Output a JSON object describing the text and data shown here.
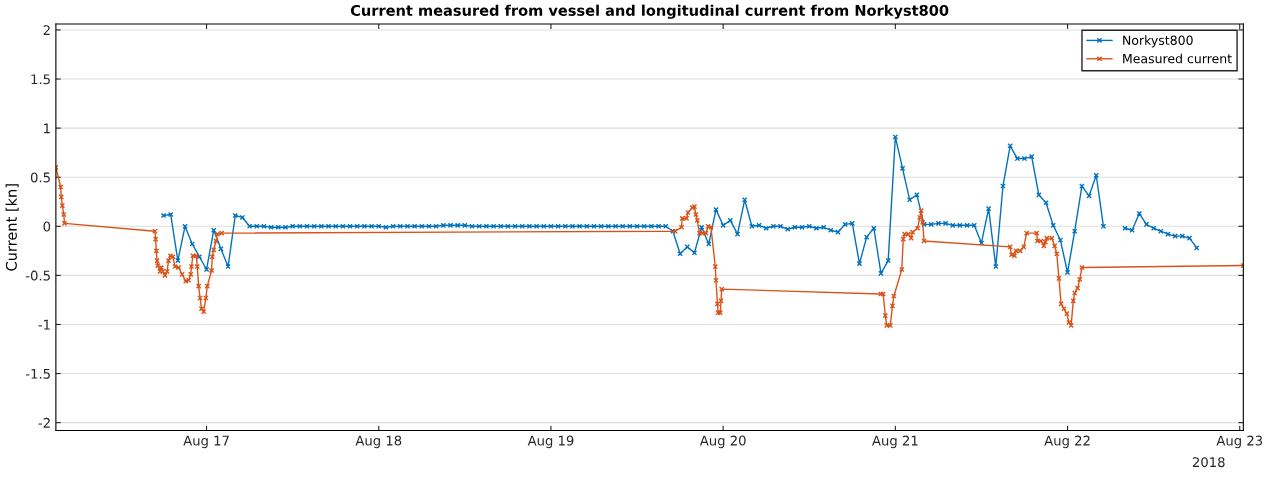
{
  "chart_data": {
    "type": "line",
    "title": "Current measured from vessel and longitudinal current from Norkyst800",
    "ylabel": "Current [kn]",
    "annotations": [
      "2018"
    ],
    "xlim": [
      "2018-08-16T03:00",
      "2018-08-23T00:30"
    ],
    "xticks": [
      {
        "value": "2018-08-17",
        "label": "Aug 17"
      },
      {
        "value": "2018-08-18",
        "label": "Aug 18"
      },
      {
        "value": "2018-08-19",
        "label": "Aug 19"
      },
      {
        "value": "2018-08-20",
        "label": "Aug 20"
      },
      {
        "value": "2018-08-21",
        "label": "Aug 21"
      },
      {
        "value": "2018-08-22",
        "label": "Aug 22"
      },
      {
        "value": "2018-08-23",
        "label": "Aug 23"
      }
    ],
    "ylim": [
      -2.08,
      2.06
    ],
    "yticks": [
      -2,
      -1.5,
      -1,
      -0.5,
      0,
      0.5,
      1,
      1.5,
      2
    ],
    "grid": "y",
    "legend": "top right",
    "marker": "cross",
    "line_style": "solid",
    "series": [
      {
        "name": "Norkyst800",
        "color": "#0072bd",
        "x": [
          "2018-08-16T18:00",
          "2018-08-16T19:00",
          "2018-08-16T20:00",
          "2018-08-16T21:00",
          "2018-08-16T22:00",
          "2018-08-16T23:00",
          "2018-08-17T00:00",
          "2018-08-17T01:00",
          "2018-08-17T02:00",
          "2018-08-17T03:00",
          "2018-08-17T04:00",
          "2018-08-17T05:00",
          "2018-08-17T06:00",
          "2018-08-17T07:00",
          "2018-08-17T08:00",
          "2018-08-17T09:00",
          "2018-08-17T10:00",
          "2018-08-17T11:00",
          "2018-08-17T12:00",
          "2018-08-17T13:00",
          "2018-08-17T14:00",
          "2018-08-17T15:00",
          "2018-08-17T16:00",
          "2018-08-17T17:00",
          "2018-08-17T18:00",
          "2018-08-17T19:00",
          "2018-08-17T20:00",
          "2018-08-17T21:00",
          "2018-08-17T22:00",
          "2018-08-17T23:00",
          "2018-08-18T00:00",
          "2018-08-18T01:00",
          "2018-08-18T02:00",
          "2018-08-18T03:00",
          "2018-08-18T04:00",
          "2018-08-18T05:00",
          "2018-08-18T06:00",
          "2018-08-18T07:00",
          "2018-08-18T08:00",
          "2018-08-18T09:00",
          "2018-08-18T10:00",
          "2018-08-18T11:00",
          "2018-08-18T12:00",
          "2018-08-18T13:00",
          "2018-08-18T14:00",
          "2018-08-18T15:00",
          "2018-08-18T16:00",
          "2018-08-18T17:00",
          "2018-08-18T18:00",
          "2018-08-18T19:00",
          "2018-08-18T20:00",
          "2018-08-18T21:00",
          "2018-08-18T22:00",
          "2018-08-18T23:00",
          "2018-08-19T00:00",
          "2018-08-19T01:00",
          "2018-08-19T02:00",
          "2018-08-19T03:00",
          "2018-08-19T04:00",
          "2018-08-19T05:00",
          "2018-08-19T06:00",
          "2018-08-19T07:00",
          "2018-08-19T08:00",
          "2018-08-19T09:00",
          "2018-08-19T10:00",
          "2018-08-19T11:00",
          "2018-08-19T12:00",
          "2018-08-19T13:00",
          "2018-08-19T14:00",
          "2018-08-19T15:00",
          "2018-08-19T16:00",
          "2018-08-19T17:00",
          "2018-08-19T18:00",
          "2018-08-19T19:00",
          "2018-08-19T20:00",
          "2018-08-19T21:00",
          "2018-08-19T22:00",
          "2018-08-19T23:00",
          "2018-08-20T00:00",
          "2018-08-20T01:00",
          "2018-08-20T02:00",
          "2018-08-20T03:00",
          "2018-08-20T04:00",
          "2018-08-20T05:00",
          "2018-08-20T06:00",
          "2018-08-20T07:00",
          "2018-08-20T08:00",
          "2018-08-20T09:00",
          "2018-08-20T10:00",
          "2018-08-20T11:00",
          "2018-08-20T12:00",
          "2018-08-20T13:00",
          "2018-08-20T14:00",
          "2018-08-20T15:00",
          "2018-08-20T16:00",
          "2018-08-20T17:00",
          "2018-08-20T18:00",
          "2018-08-20T19:00",
          "2018-08-20T20:00",
          "2018-08-20T21:00",
          "2018-08-20T22:00",
          "2018-08-20T23:00",
          "2018-08-21T00:00",
          "2018-08-21T01:00",
          "2018-08-21T02:00",
          "2018-08-21T03:00",
          "2018-08-21T04:00",
          "2018-08-21T05:00",
          "2018-08-21T06:00",
          "2018-08-21T07:00",
          "2018-08-21T08:00",
          "2018-08-21T09:00",
          "2018-08-21T10:00",
          "2018-08-21T11:00",
          "2018-08-21T12:00",
          "2018-08-21T13:00",
          "2018-08-21T14:00",
          "2018-08-21T15:00",
          "2018-08-21T16:00",
          "2018-08-21T17:00",
          "2018-08-21T18:00",
          "2018-08-21T19:00",
          "2018-08-21T20:00",
          "2018-08-21T21:00",
          "2018-08-21T22:00",
          "2018-08-21T23:00",
          "2018-08-22T00:00",
          "2018-08-22T01:00",
          "2018-08-22T02:00",
          "2018-08-22T03:00",
          "2018-08-22T04:00",
          "2018-08-22T05:00",
          "2018-08-22T06:00",
          "2018-08-22T07:00",
          "2018-08-22T08:00",
          "2018-08-22T09:00",
          "2018-08-22T10:00",
          "2018-08-22T11:00",
          "2018-08-22T12:00",
          "2018-08-22T13:00",
          "2018-08-22T14:00",
          "2018-08-22T15:00",
          "2018-08-22T16:00",
          "2018-08-22T17:00",
          "2018-08-22T18:00"
        ],
        "values": [
          0.11,
          0.12,
          -0.35,
          0.0,
          -0.18,
          -0.31,
          -0.44,
          -0.04,
          -0.23,
          -0.41,
          0.11,
          0.09,
          0.0,
          0.0,
          0.0,
          -0.01,
          -0.01,
          -0.01,
          0.0,
          0.0,
          0.0,
          0.0,
          0.0,
          0.0,
          0.0,
          0.0,
          0.0,
          0.0,
          0.0,
          0.0,
          0.0,
          -0.01,
          0.0,
          0.0,
          0.0,
          0.0,
          0.0,
          0.0,
          0.0,
          0.01,
          0.01,
          0.01,
          0.01,
          0.0,
          0.0,
          0.0,
          0.0,
          0.0,
          0.0,
          0.0,
          0.0,
          0.0,
          0.0,
          0.0,
          0.0,
          0.0,
          0.0,
          0.0,
          0.0,
          0.0,
          0.0,
          0.0,
          0.0,
          0.0,
          0.0,
          0.0,
          0.0,
          0.0,
          0.0,
          0.0,
          0.0,
          -0.05,
          -0.28,
          -0.21,
          -0.27,
          -0.01,
          -0.18,
          0.17,
          0.01,
          0.06,
          -0.08,
          0.27,
          0.0,
          0.01,
          -0.02,
          0.0,
          0.0,
          -0.03,
          -0.01,
          -0.01,
          0.0,
          -0.02,
          -0.01,
          -0.04,
          -0.06,
          0.02,
          0.03,
          -0.38,
          -0.11,
          -0.02,
          -0.48,
          -0.35,
          0.91,
          0.59,
          0.27,
          0.32,
          0.02,
          0.02,
          0.03,
          0.03,
          0.01,
          0.01,
          0.01,
          0.01,
          -0.17,
          0.18,
          -0.41,
          0.41,
          0.82,
          0.69,
          0.69,
          0.71,
          0.32,
          0.24,
          0.01,
          -0.14,
          -0.47,
          -0.05,
          0.41,
          0.31,
          0.52,
          0.0,
          null,
          null,
          -0.02,
          -0.04,
          0.13,
          0.02,
          -0.02,
          -0.05,
          -0.08,
          -0.1,
          -0.1,
          -0.12,
          -0.22
        ]
      },
      {
        "name": "Measured current",
        "color": "#d95319",
        "x": [
          "2018-08-16T03:00",
          "2018-08-16T03:40",
          "2018-08-16T03:45",
          "2018-08-16T03:54",
          "2018-08-16T04:06",
          "2018-08-16T04:12",
          "2018-08-16T16:48",
          "2018-08-16T16:54",
          "2018-08-16T17:00",
          "2018-08-16T17:06",
          "2018-08-16T17:12",
          "2018-08-16T17:30",
          "2018-08-16T17:42",
          "2018-08-16T17:54",
          "2018-08-16T18:12",
          "2018-08-16T18:30",
          "2018-08-16T18:42",
          "2018-08-16T18:58",
          "2018-08-16T19:18",
          "2018-08-16T19:36",
          "2018-08-16T20:06",
          "2018-08-16T20:36",
          "2018-08-16T21:06",
          "2018-08-16T21:30",
          "2018-08-16T21:48",
          "2018-08-16T21:54",
          "2018-08-16T22:06",
          "2018-08-16T22:36",
          "2018-08-16T22:42",
          "2018-08-16T22:54",
          "2018-08-16T23:06",
          "2018-08-16T23:18",
          "2018-08-16T23:36",
          "2018-08-16T23:54",
          "2018-08-17T00:06",
          "2018-08-17T00:42",
          "2018-08-17T00:48",
          "2018-08-17T01:00",
          "2018-08-17T01:18",
          "2018-08-17T01:30",
          "2018-08-17T02:06",
          "2018-08-19T17:18",
          "2018-08-19T18:12",
          "2018-08-19T18:18",
          "2018-08-19T18:54",
          "2018-08-19T19:06",
          "2018-08-19T19:42",
          "2018-08-19T20:00",
          "2018-08-19T20:12",
          "2018-08-19T20:24",
          "2018-08-19T20:42",
          "2018-08-19T21:06",
          "2018-08-19T21:36",
          "2018-08-19T21:54",
          "2018-08-19T22:18",
          "2018-08-19T22:54",
          "2018-08-19T23:00",
          "2018-08-19T23:12",
          "2018-08-19T23:18",
          "2018-08-19T23:36",
          "2018-08-19T23:42",
          "2018-08-19T23:48",
          "2018-08-20T22:00",
          "2018-08-20T22:18",
          "2018-08-20T22:36",
          "2018-08-20T22:48",
          "2018-08-20T23:18",
          "2018-08-20T23:36",
          "2018-08-20T23:48",
          "2018-08-21T00:54",
          "2018-08-21T01:06",
          "2018-08-21T01:18",
          "2018-08-21T01:48",
          "2018-08-21T02:12",
          "2018-08-21T02:24",
          "2018-08-21T03:06",
          "2018-08-21T03:24",
          "2018-08-21T03:36",
          "2018-08-21T03:48",
          "2018-08-21T04:00",
          "2018-08-21T16:00",
          "2018-08-21T16:12",
          "2018-08-21T16:36",
          "2018-08-21T16:48",
          "2018-08-21T17:24",
          "2018-08-21T17:54",
          "2018-08-21T18:18",
          "2018-08-21T19:42",
          "2018-08-21T19:48",
          "2018-08-21T20:18",
          "2018-08-21T20:42",
          "2018-08-21T20:54",
          "2018-08-21T21:06",
          "2018-08-21T21:48",
          "2018-08-21T22:12",
          "2018-08-21T22:30",
          "2018-08-21T22:48",
          "2018-08-21T23:06",
          "2018-08-21T23:30",
          "2018-08-21T23:54",
          "2018-08-22T00:12",
          "2018-08-22T00:30",
          "2018-08-22T00:48",
          "2018-08-22T01:00",
          "2018-08-22T01:24",
          "2018-08-22T01:42",
          "2018-08-22T02:00",
          "2018-08-23T00:30"
        ],
        "values": [
          0.6,
          0.4,
          0.3,
          0.21,
          0.12,
          0.03,
          -0.05,
          -0.13,
          -0.25,
          -0.35,
          -0.4,
          -0.46,
          -0.42,
          -0.46,
          -0.5,
          -0.46,
          -0.35,
          -0.3,
          -0.31,
          -0.41,
          -0.42,
          -0.49,
          -0.56,
          -0.55,
          -0.49,
          -0.41,
          -0.3,
          -0.3,
          -0.41,
          -0.61,
          -0.73,
          -0.84,
          -0.87,
          -0.73,
          -0.61,
          -0.45,
          -0.31,
          -0.24,
          -0.15,
          -0.08,
          -0.07,
          -0.05,
          -0.01,
          0.08,
          0.08,
          0.14,
          0.19,
          0.2,
          0.12,
          0.06,
          -0.07,
          -0.07,
          -0.07,
          0.0,
          -0.01,
          -0.41,
          -0.55,
          -0.79,
          -0.88,
          -0.88,
          -0.76,
          -0.64,
          -0.69,
          -0.69,
          -0.91,
          -1.01,
          -1.01,
          -0.81,
          -0.71,
          -0.44,
          -0.13,
          -0.08,
          -0.08,
          -0.12,
          -0.06,
          -0.02,
          0.09,
          0.16,
          0.04,
          -0.15,
          -0.21,
          -0.29,
          -0.3,
          -0.25,
          -0.25,
          -0.21,
          -0.07,
          -0.07,
          -0.15,
          -0.15,
          -0.2,
          -0.16,
          -0.12,
          -0.12,
          -0.2,
          -0.28,
          -0.53,
          -0.79,
          -0.84,
          -0.89,
          -0.98,
          -1.01,
          -0.76,
          -0.68,
          -0.63,
          -0.54,
          -0.42,
          -0.4
        ]
      }
    ]
  }
}
